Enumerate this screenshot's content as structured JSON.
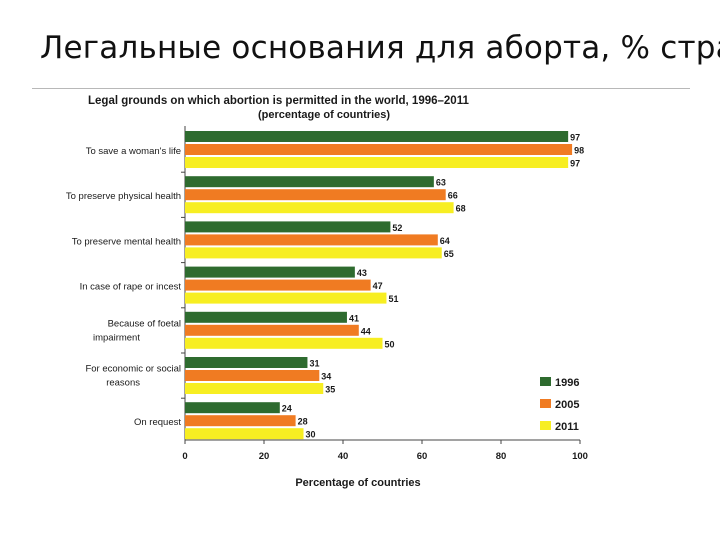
{
  "slide": {
    "title": "Легальные основания для аборта, % стран"
  },
  "chart_data": {
    "type": "bar",
    "orientation": "horizontal",
    "title": "Legal grounds on which abortion is permitted in the world, 1996–2011",
    "subtitle": "(percentage of countries)",
    "xlabel": "Percentage of countries",
    "ylabel": "",
    "xlim": [
      0,
      100
    ],
    "xticks": [
      0,
      20,
      40,
      60,
      80,
      100
    ],
    "grid": false,
    "legend_position": "bottom-right",
    "categories": [
      [
        "To save a woman's life"
      ],
      [
        "To preserve physical health"
      ],
      [
        "To preserve mental health"
      ],
      [
        "In case of rape or incest"
      ],
      [
        "Because of foetal",
        "impairment"
      ],
      [
        "For economic or social",
        "reasons"
      ],
      [
        "On request"
      ]
    ],
    "series": [
      {
        "name": "1996",
        "color": "#2e6b2f",
        "values": [
          97,
          63,
          52,
          43,
          41,
          31,
          24
        ]
      },
      {
        "name": "2005",
        "color": "#f07b22",
        "values": [
          98,
          66,
          64,
          47,
          44,
          34,
          28
        ]
      },
      {
        "name": "2011",
        "color": "#f7ee22",
        "values": [
          97,
          68,
          65,
          51,
          50,
          35,
          30
        ]
      }
    ]
  }
}
